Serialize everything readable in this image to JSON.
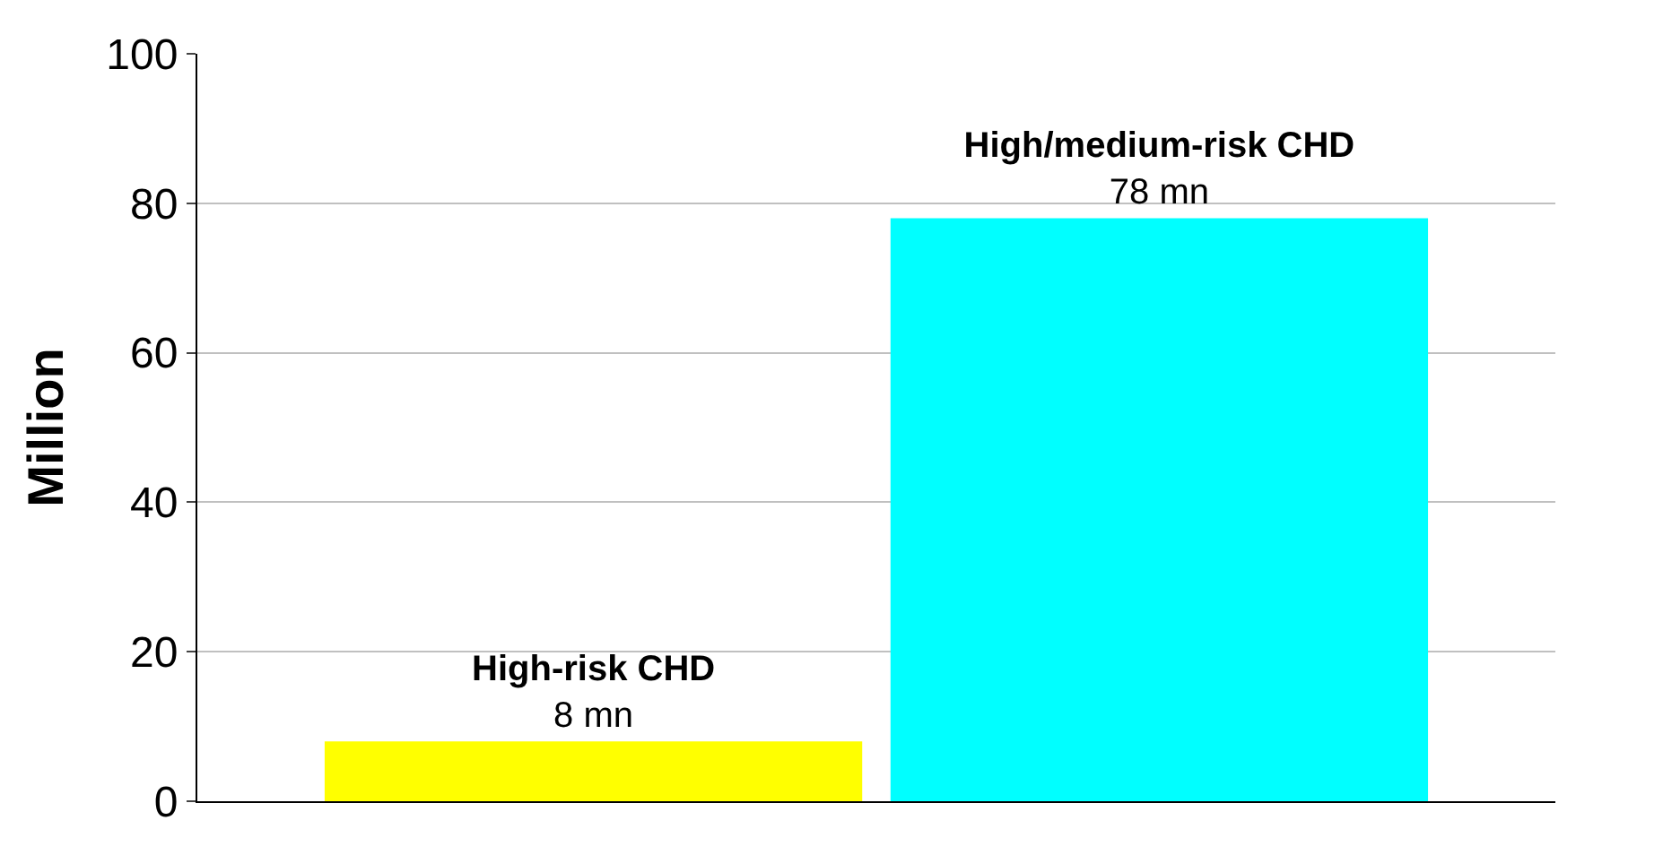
{
  "chart_data": {
    "type": "bar",
    "ylabel": "Million",
    "categories": [
      null,
      null
    ],
    "series": [
      {
        "name": "High-risk CHD",
        "color": "#ffff00",
        "values": [
          8,
          null
        ],
        "value_labels": [
          "8 mn",
          null
        ]
      },
      {
        "name": "High/medium-risk CHD",
        "color": "#00ffff",
        "values": [
          null,
          78
        ],
        "value_labels": [
          null,
          "78 mn"
        ]
      }
    ],
    "ylim": [
      0,
      100
    ],
    "yticks": [
      0,
      20,
      40,
      60,
      80,
      100
    ],
    "grid": "y",
    "legend": false,
    "tick_labels": "y"
  }
}
